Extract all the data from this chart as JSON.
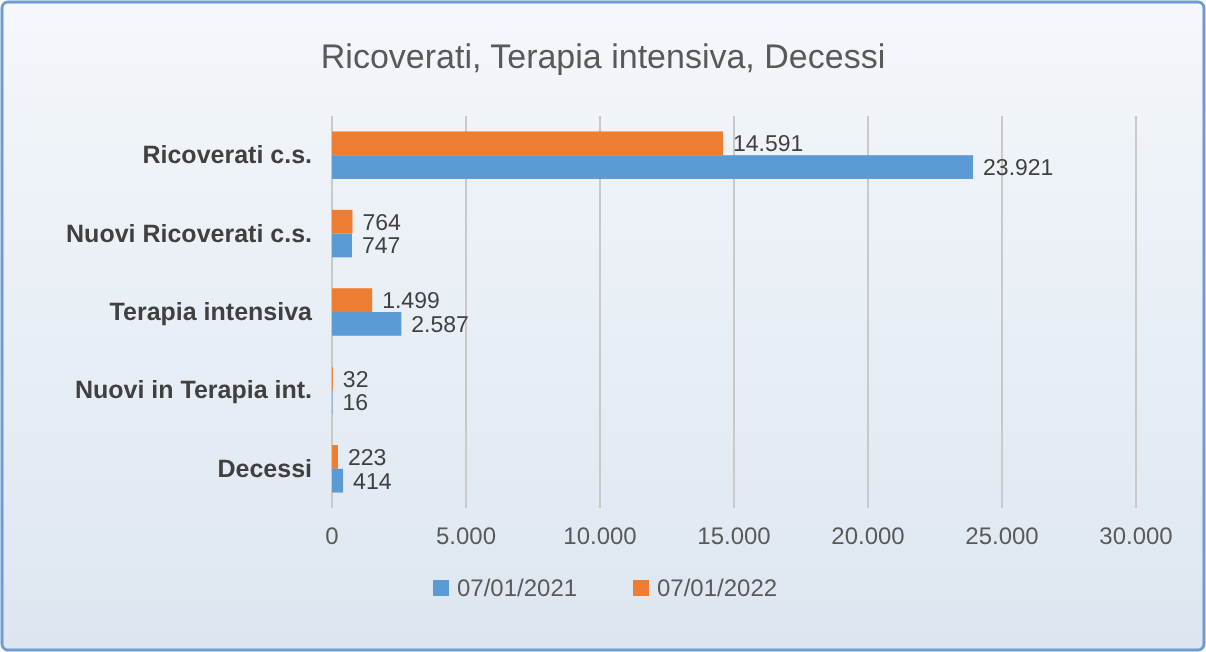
{
  "chart_data": {
    "type": "bar",
    "orientation": "horizontal",
    "title": "Ricoverati, Terapia intensiva, Decessi",
    "categories": [
      "Ricoverati c.s.",
      "Nuovi Ricoverati c.s.",
      "Terapia intensiva",
      "Nuovi in Terapia int.",
      "Decessi"
    ],
    "series": [
      {
        "name": "07/01/2022",
        "color": "#ed7d31",
        "values": [
          14591,
          764,
          1499,
          32,
          223
        ],
        "value_labels": [
          "14.591",
          "764",
          "1.499",
          "32",
          "223"
        ]
      },
      {
        "name": "07/01/2021",
        "color": "#5b9bd5",
        "values": [
          23921,
          747,
          2587,
          16,
          414
        ],
        "value_labels": [
          "23.921",
          "747",
          "2.587",
          "16",
          "414"
        ]
      }
    ],
    "xlim": [
      0,
      30000
    ],
    "xticks": [
      0,
      {
        "value": 5000,
        "label": "5.000"
      },
      {
        "value": 10000,
        "label": "10.000"
      },
      {
        "value": 15000,
        "label": "15.000"
      },
      {
        "value": 20000,
        "label": "20.000"
      },
      {
        "value": 25000,
        "label": "25.000"
      },
      {
        "value": 30000,
        "label": "30.000"
      }
    ],
    "grid": "x",
    "legend": "bottom"
  }
}
